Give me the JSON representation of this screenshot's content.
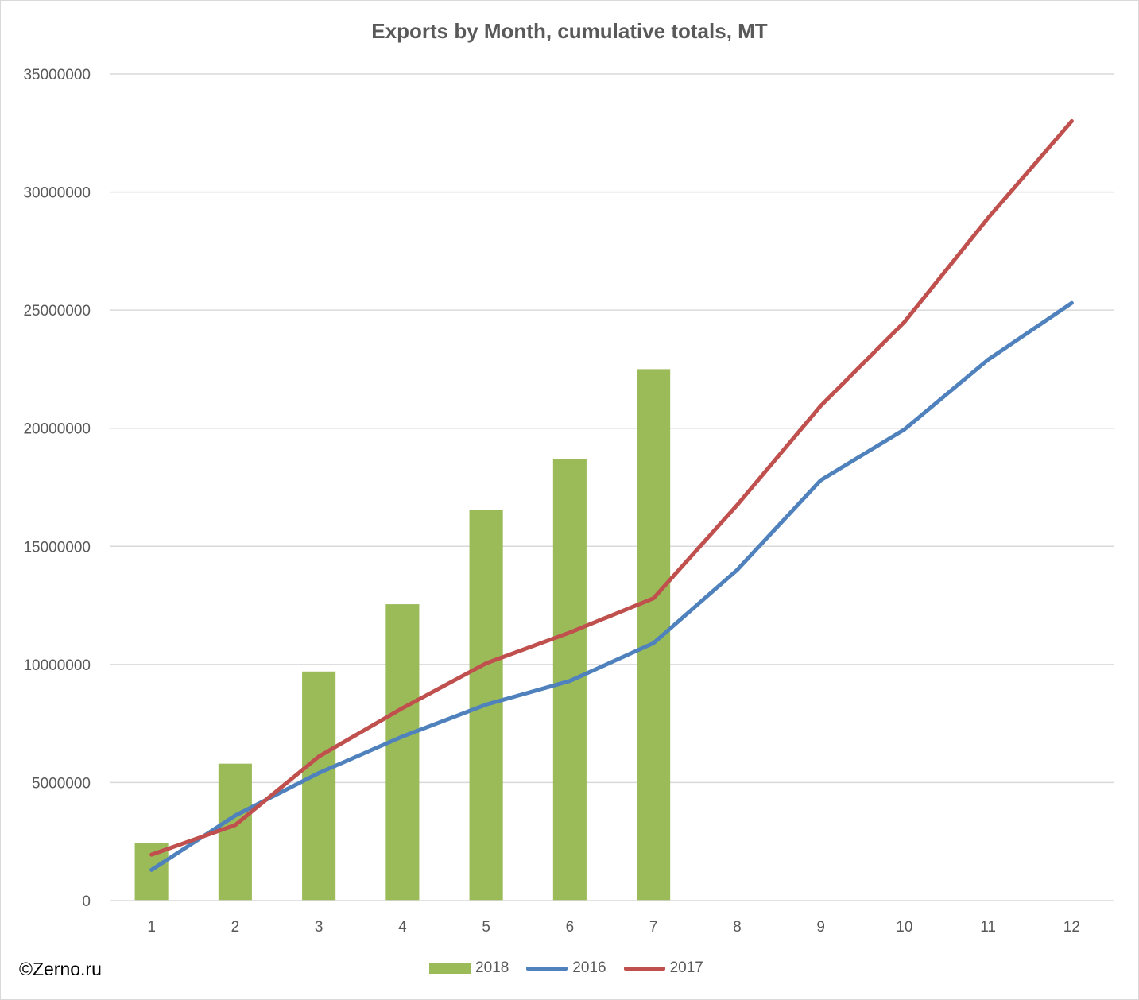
{
  "chart_data": {
    "type": "bar+line",
    "title": "Exports by Month, cumulative totals, MT",
    "xlabel": "",
    "ylabel": "",
    "categories": [
      "1",
      "2",
      "3",
      "4",
      "5",
      "6",
      "7",
      "8",
      "9",
      "10",
      "11",
      "12"
    ],
    "ylim": [
      0,
      35000000
    ],
    "yticks": [
      "0",
      "5000000",
      "10000000",
      "15000000",
      "20000000",
      "25000000",
      "30000000",
      "35000000"
    ],
    "grid": true,
    "legend_position": "bottom",
    "series": [
      {
        "name": "2018",
        "kind": "bar",
        "color": "#9bbb59",
        "values": [
          2450000,
          5800000,
          9700000,
          12550000,
          16550000,
          18700000,
          22500000,
          null,
          null,
          null,
          null,
          null
        ]
      },
      {
        "name": "2016",
        "kind": "line",
        "color": "#4f81bd",
        "values": [
          1300000,
          3600000,
          5400000,
          6950000,
          8300000,
          9300000,
          10900000,
          14000000,
          17800000,
          19950000,
          22900000,
          25300000
        ]
      },
      {
        "name": "2017",
        "kind": "line",
        "color": "#c0504d",
        "values": [
          1950000,
          3200000,
          6100000,
          8150000,
          10050000,
          11350000,
          12800000,
          16750000,
          20950000,
          24500000,
          28900000,
          33000000
        ]
      }
    ]
  },
  "credit": "©Zerno.ru"
}
